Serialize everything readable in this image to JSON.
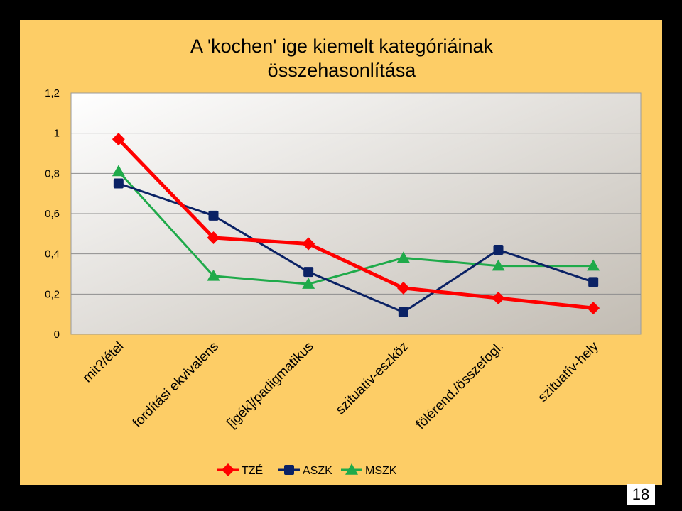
{
  "slide": {
    "number": "18"
  },
  "chart_data": {
    "type": "line",
    "title": "A 'kochen' ige kiemelt kategóriáinak összehasonlítása",
    "title_lines": [
      "A 'kochen' ige kiemelt kategóriáinak",
      "összehasonlítása"
    ],
    "categories": [
      "mit?/étel",
      "fordítási ekvivalens",
      "[igék]/padigmatikus",
      "szituatív-eszköz",
      "fölérend./összefogl.",
      "szituatív-hely"
    ],
    "y_ticks": [
      "0",
      "0,2",
      "0,4",
      "0,6",
      "0,8",
      "1",
      "1,2"
    ],
    "ylim": [
      0,
      1.2
    ],
    "grid": true,
    "legend_position": "bottom",
    "series": [
      {
        "name": "TZÉ",
        "color": "#ff0000",
        "marker": "diamond",
        "values": [
          0.97,
          0.48,
          0.45,
          0.23,
          0.18,
          0.13
        ]
      },
      {
        "name": "ASZK",
        "color": "#0b2265",
        "marker": "square",
        "values": [
          0.75,
          0.59,
          0.31,
          0.11,
          0.42,
          0.26
        ]
      },
      {
        "name": "MSZK",
        "color": "#1faa4a",
        "marker": "triangle",
        "values": [
          0.81,
          0.29,
          0.25,
          0.38,
          0.34,
          0.34
        ]
      }
    ]
  }
}
